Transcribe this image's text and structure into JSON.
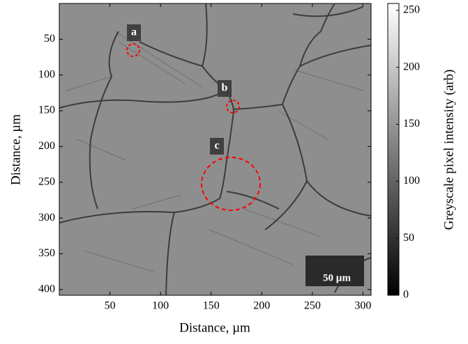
{
  "chart_data": {
    "type": "image",
    "xlabel": "Distance, µm",
    "ylabel": "Distance, µm",
    "xlim": [
      0,
      308
    ],
    "ylim": [
      0,
      408
    ],
    "y_reversed": true,
    "xticks": [
      50,
      100,
      150,
      200,
      250,
      300
    ],
    "yticks": [
      50,
      100,
      150,
      200,
      250,
      300,
      350,
      400
    ],
    "colormap": "gray",
    "colorbar": {
      "label": "Greyscale pixel intensity (arb)",
      "lim": [
        0,
        256
      ],
      "ticks": [
        0,
        50,
        100,
        150,
        200,
        250
      ]
    },
    "annotations": [
      "a",
      "b",
      "c"
    ],
    "scale_bar_label": "50 µm"
  }
}
